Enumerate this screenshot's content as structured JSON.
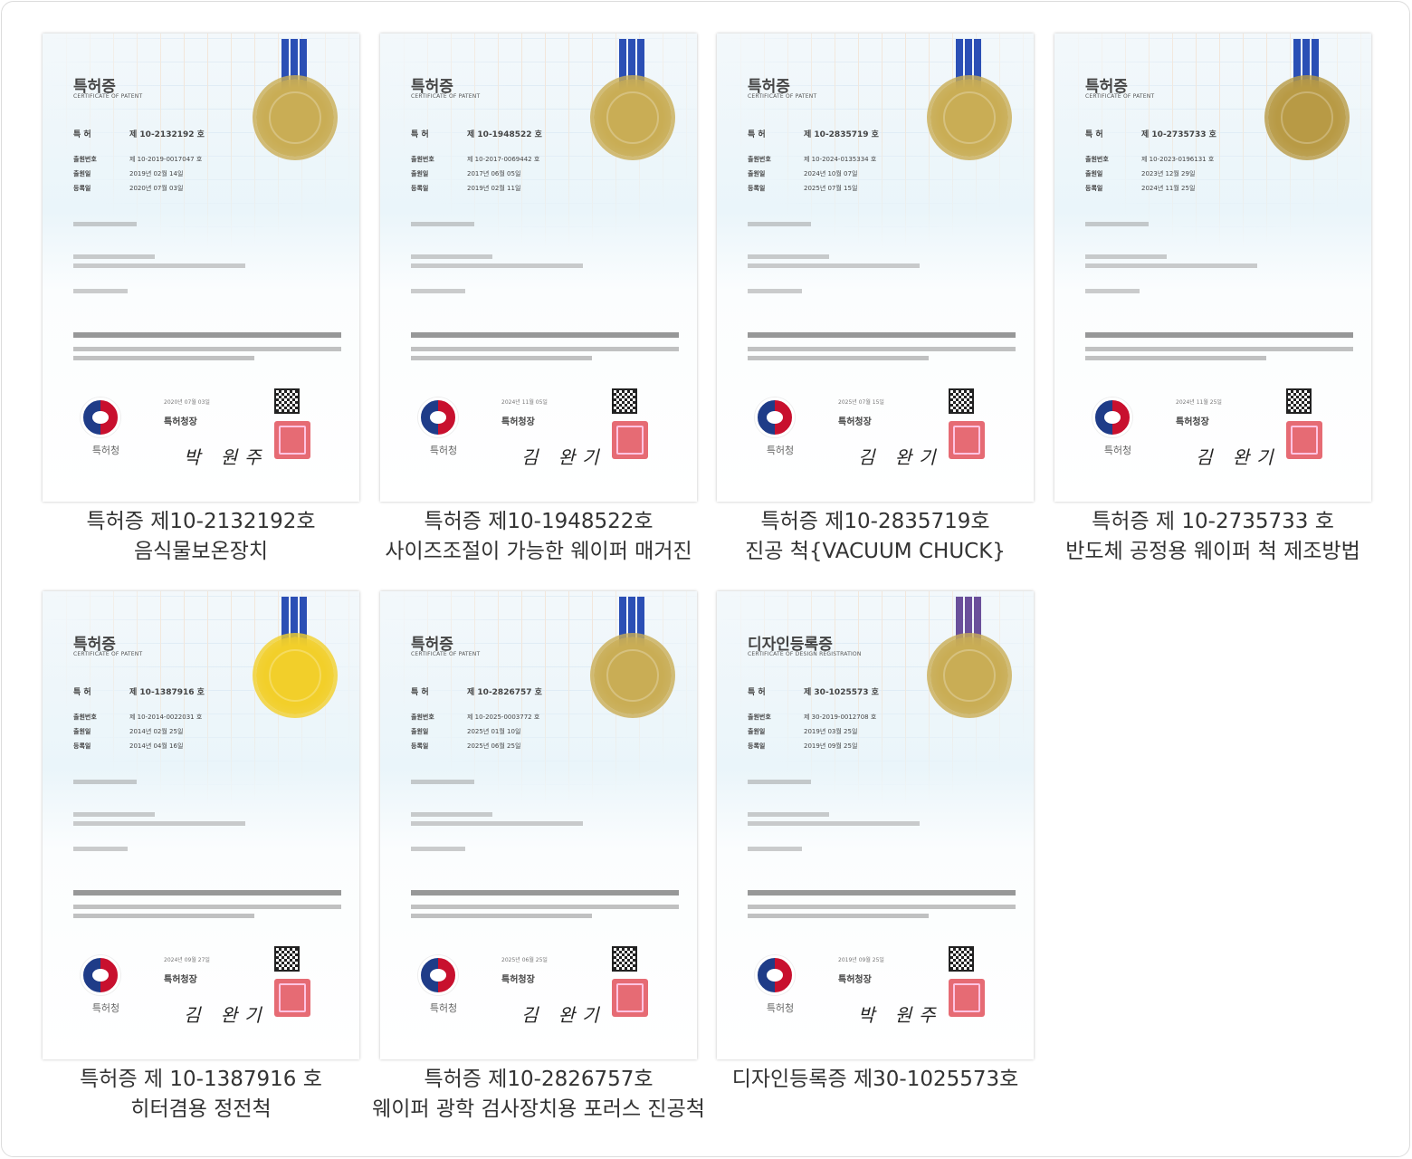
{
  "certificates": [
    {
      "title": "특허증",
      "subtitle": "CERTIFICATE OF PATENT",
      "reg_no": "제 10-2132192 호",
      "app_no": "제 10-2019-0017047 호",
      "filing_date": "2019년 02월 14일",
      "reg_date": "2020년 07월 03일",
      "issue_date": "2020년 07월 03일",
      "issuer": "특허청장",
      "signature": "박 원주",
      "office": "특허청",
      "caption_line1": "특허증 제10-2132192호",
      "caption_line2": "음식물보온장치",
      "ribbon_color": "#2b4fb5",
      "seal_color": "#c9ad55"
    },
    {
      "title": "특허증",
      "subtitle": "CERTIFICATE OF PATENT",
      "reg_no": "제 10-1948522 호",
      "app_no": "제 10-2017-0069442 호",
      "filing_date": "2017년 06월 05일",
      "reg_date": "2019년 02월 11일",
      "issue_date": "2024년 11월 05일",
      "issuer": "특허청장",
      "signature": "김 완기",
      "office": "특허청",
      "caption_line1": "특허증 제10-1948522호",
      "caption_line2": "사이즈조절이 가능한 웨이퍼 매거진",
      "ribbon_color": "#2b4fb5",
      "seal_color": "#c9ad55"
    },
    {
      "title": "특허증",
      "subtitle": "CERTIFICATE OF PATENT",
      "reg_no": "제 10-2835719 호",
      "app_no": "제 10-2024-0135334 호",
      "filing_date": "2024년 10월 07일",
      "reg_date": "2025년 07월 15일",
      "issue_date": "2025년 07월 15일",
      "issuer": "특허청장",
      "signature": "김 완기",
      "office": "특허청",
      "caption_line1": "특허증 제10-2835719호",
      "caption_line2": "진공 척{VACUUM CHUCK}",
      "ribbon_color": "#2b4fb5",
      "seal_color": "#c9ad55"
    },
    {
      "title": "특허증",
      "subtitle": "CERTIFICATE OF PATENT",
      "reg_no": "제 10-2735733 호",
      "app_no": "제 10-2023-0196131 호",
      "filing_date": "2023년 12월 29일",
      "reg_date": "2024년 11월 25일",
      "issue_date": "2024년 11월 25일",
      "issuer": "특허청장",
      "signature": "김 완기",
      "office": "특허청",
      "caption_line1": "특허증 제 10-2735733 호",
      "caption_line2": "반도체 공정용 웨이퍼 척 제조방법",
      "ribbon_color": "#2b4fb5",
      "seal_color": "#b89a45"
    },
    {
      "title": "특허증",
      "subtitle": "CERTIFICATE OF PATENT",
      "reg_no": "제 10-1387916 호",
      "app_no": "제 10-2014-0022031 호",
      "filing_date": "2014년 02월 25일",
      "reg_date": "2014년 04월 16일",
      "issue_date": "2024년 09월 27일",
      "issuer": "특허청장",
      "signature": "김 완기",
      "office": "특허청",
      "caption_line1": "특허증 제 10-1387916 호",
      "caption_line2": "히터겸용 정전척",
      "ribbon_color": "#2b4fb5",
      "seal_color": "#f2cf2a"
    },
    {
      "title": "특허증",
      "subtitle": "CERTIFICATE OF PATENT",
      "reg_no": "제 10-2826757 호",
      "app_no": "제 10-2025-0003772 호",
      "filing_date": "2025년 01월 10일",
      "reg_date": "2025년 06월 25일",
      "issue_date": "2025년 06월 25일",
      "issuer": "특허청장",
      "signature": "김 완기",
      "office": "특허청",
      "caption_line1": "특허증 제10-2826757호",
      "caption_line2": "웨이퍼 광학 검사장치용 포러스 진공척",
      "ribbon_color": "#2b4fb5",
      "seal_color": "#c9ad55"
    },
    {
      "title": "디자인등록증",
      "subtitle": "CERTIFICATE OF DESIGN REGISTRATION",
      "reg_no": "제 30-1025573 호",
      "app_no": "제 30-2019-0012708 호",
      "filing_date": "2019년 03월 25일",
      "reg_date": "2019년 09월 25일",
      "issue_date": "2019년 09월 25일",
      "issuer": "특허청장",
      "signature": "박 원주",
      "office": "특허청",
      "caption_line1": "디자인등록증 제30-1025573호",
      "caption_line2": "",
      "ribbon_color": "#6a4f9a",
      "seal_color": "#c9ad55"
    }
  ]
}
